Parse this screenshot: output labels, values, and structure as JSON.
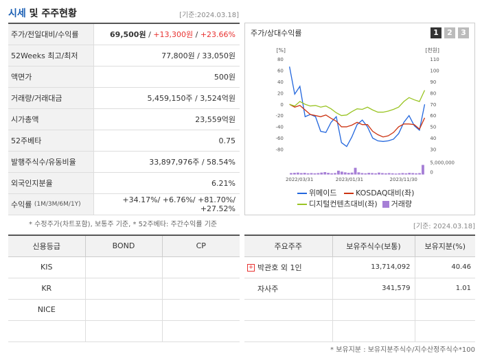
{
  "title": {
    "main": "시세",
    "rest": " 및 주주현황",
    "date": "[기준:2024.03.18]"
  },
  "summary_rows": [
    {
      "label": "주가/전일대비/수익률",
      "value_parts": [
        "69,500원",
        " / ",
        "+13,300원",
        " / ",
        "+23.66%"
      ]
    },
    {
      "label": "52Weeks 최고/최저",
      "value": "77,800원 / 33,050원"
    },
    {
      "label": "액면가",
      "value": "500원"
    },
    {
      "label": "거래량/거래대금",
      "value": "5,459,150주 / 3,524억원"
    },
    {
      "label": "시가총액",
      "value": "23,559억원"
    },
    {
      "label": "52주베타",
      "value": "0.75"
    },
    {
      "label": "발행주식수/유동비율",
      "value": "33,897,976주 / 58.54%"
    },
    {
      "label": "외국인지분율",
      "value": "6.21%"
    },
    {
      "label": "수익률",
      "sub": "(1M/3M/6M/1Y)",
      "value": "+34.17%/ +6.76%/ +81.70%/ +27.52%"
    }
  ],
  "footnote1": "* 수정주가(차트포함), 보통주 기준, * 52주베타: 주간수익률 기준",
  "chart_title": "주가/상대수익률",
  "chart_pages": [
    "1",
    "2",
    "3"
  ],
  "chart_data": {
    "type": "line",
    "left_axis_label": "[%]",
    "right_axis_label": "[천원]",
    "left_ticks": [
      "80",
      "60",
      "40",
      "20",
      "0",
      "-20",
      "-40",
      "-60",
      "-80"
    ],
    "right_ticks": [
      "110",
      "100",
      "90",
      "80",
      "70",
      "60",
      "50",
      "40",
      "30"
    ],
    "volume_tick": "5,000,000",
    "volume_zero": "0",
    "x_ticks": [
      "2022/03/31",
      "2023/01/31",
      "2023/11/30"
    ],
    "ylim_left": [
      -80,
      80
    ],
    "series": [
      {
        "name": "위메이드",
        "color": "#2266dd",
        "values": [
          67,
          18,
          32,
          -22,
          -18,
          -22,
          -48,
          -50,
          -32,
          -22,
          -68,
          -75,
          -58,
          -36,
          -28,
          -40,
          -60,
          -65,
          -66,
          -65,
          -62,
          -52,
          -32,
          -20,
          -38,
          -46,
          0
        ]
      },
      {
        "name": "KOSDAQ대비(좌)",
        "color": "#cc3311",
        "values": [
          0,
          -5,
          -2,
          -10,
          -18,
          -20,
          -22,
          -19,
          -25,
          -30,
          -40,
          -40,
          -37,
          -32,
          -36,
          -36,
          -48,
          -54,
          -58,
          -56,
          -50,
          -40,
          -35,
          -35,
          -36,
          -44,
          -24
        ]
      },
      {
        "name": "디지털컨텐츠대비(좌)",
        "color": "#99c422",
        "values": [
          0,
          -3,
          5,
          0,
          -3,
          -2,
          -5,
          -3,
          -8,
          -15,
          -20,
          -19,
          -13,
          -8,
          -9,
          -5,
          -10,
          -14,
          -14,
          -12,
          -9,
          -5,
          5,
          12,
          8,
          5,
          25
        ]
      }
    ],
    "volume": {
      "name": "거래량",
      "color": "#a67fd6",
      "values": [
        0.6,
        0.7,
        0.8,
        0.6,
        0.7,
        0.5,
        0.6,
        0.5,
        0.6,
        0.8,
        1.0,
        0.7,
        0.5,
        0.6,
        1.6,
        1.2,
        0.9,
        0.7,
        0.8,
        2.8,
        0.9,
        0.6,
        0.5,
        0.7,
        0.6,
        0.5,
        0.8,
        0.6,
        0.5,
        0.6,
        0.5,
        0.4,
        0.5,
        0.6,
        0.5,
        0.7,
        0.6,
        0.5,
        0.6,
        4.0
      ]
    }
  },
  "base_table": {
    "headers": [
      "신용등급",
      "BOND",
      "CP"
    ],
    "rows": [
      [
        "KIS",
        "",
        ""
      ],
      [
        "KR",
        "",
        ""
      ],
      [
        "NICE",
        "",
        ""
      ],
      [
        "",
        "",
        ""
      ]
    ]
  },
  "date2": "[기준: 2024.03.18]",
  "holders": {
    "headers": [
      "주요주주",
      "보유주식수(보통)",
      "보유지분(%)"
    ],
    "rows": [
      {
        "name": "박관호 외 1인",
        "shares": "13,714,092",
        "pct": "40.46",
        "expand": "+"
      },
      {
        "name": "자사주",
        "shares": "341,579",
        "pct": "1.01",
        "expand": ""
      },
      {
        "name": "",
        "shares": "",
        "pct": "",
        "expand": ""
      },
      {
        "name": "",
        "shares": "",
        "pct": "",
        "expand": ""
      }
    ]
  },
  "footnote2": "* 보유지분 : 보유지분주식수/지수산정주식수*100"
}
